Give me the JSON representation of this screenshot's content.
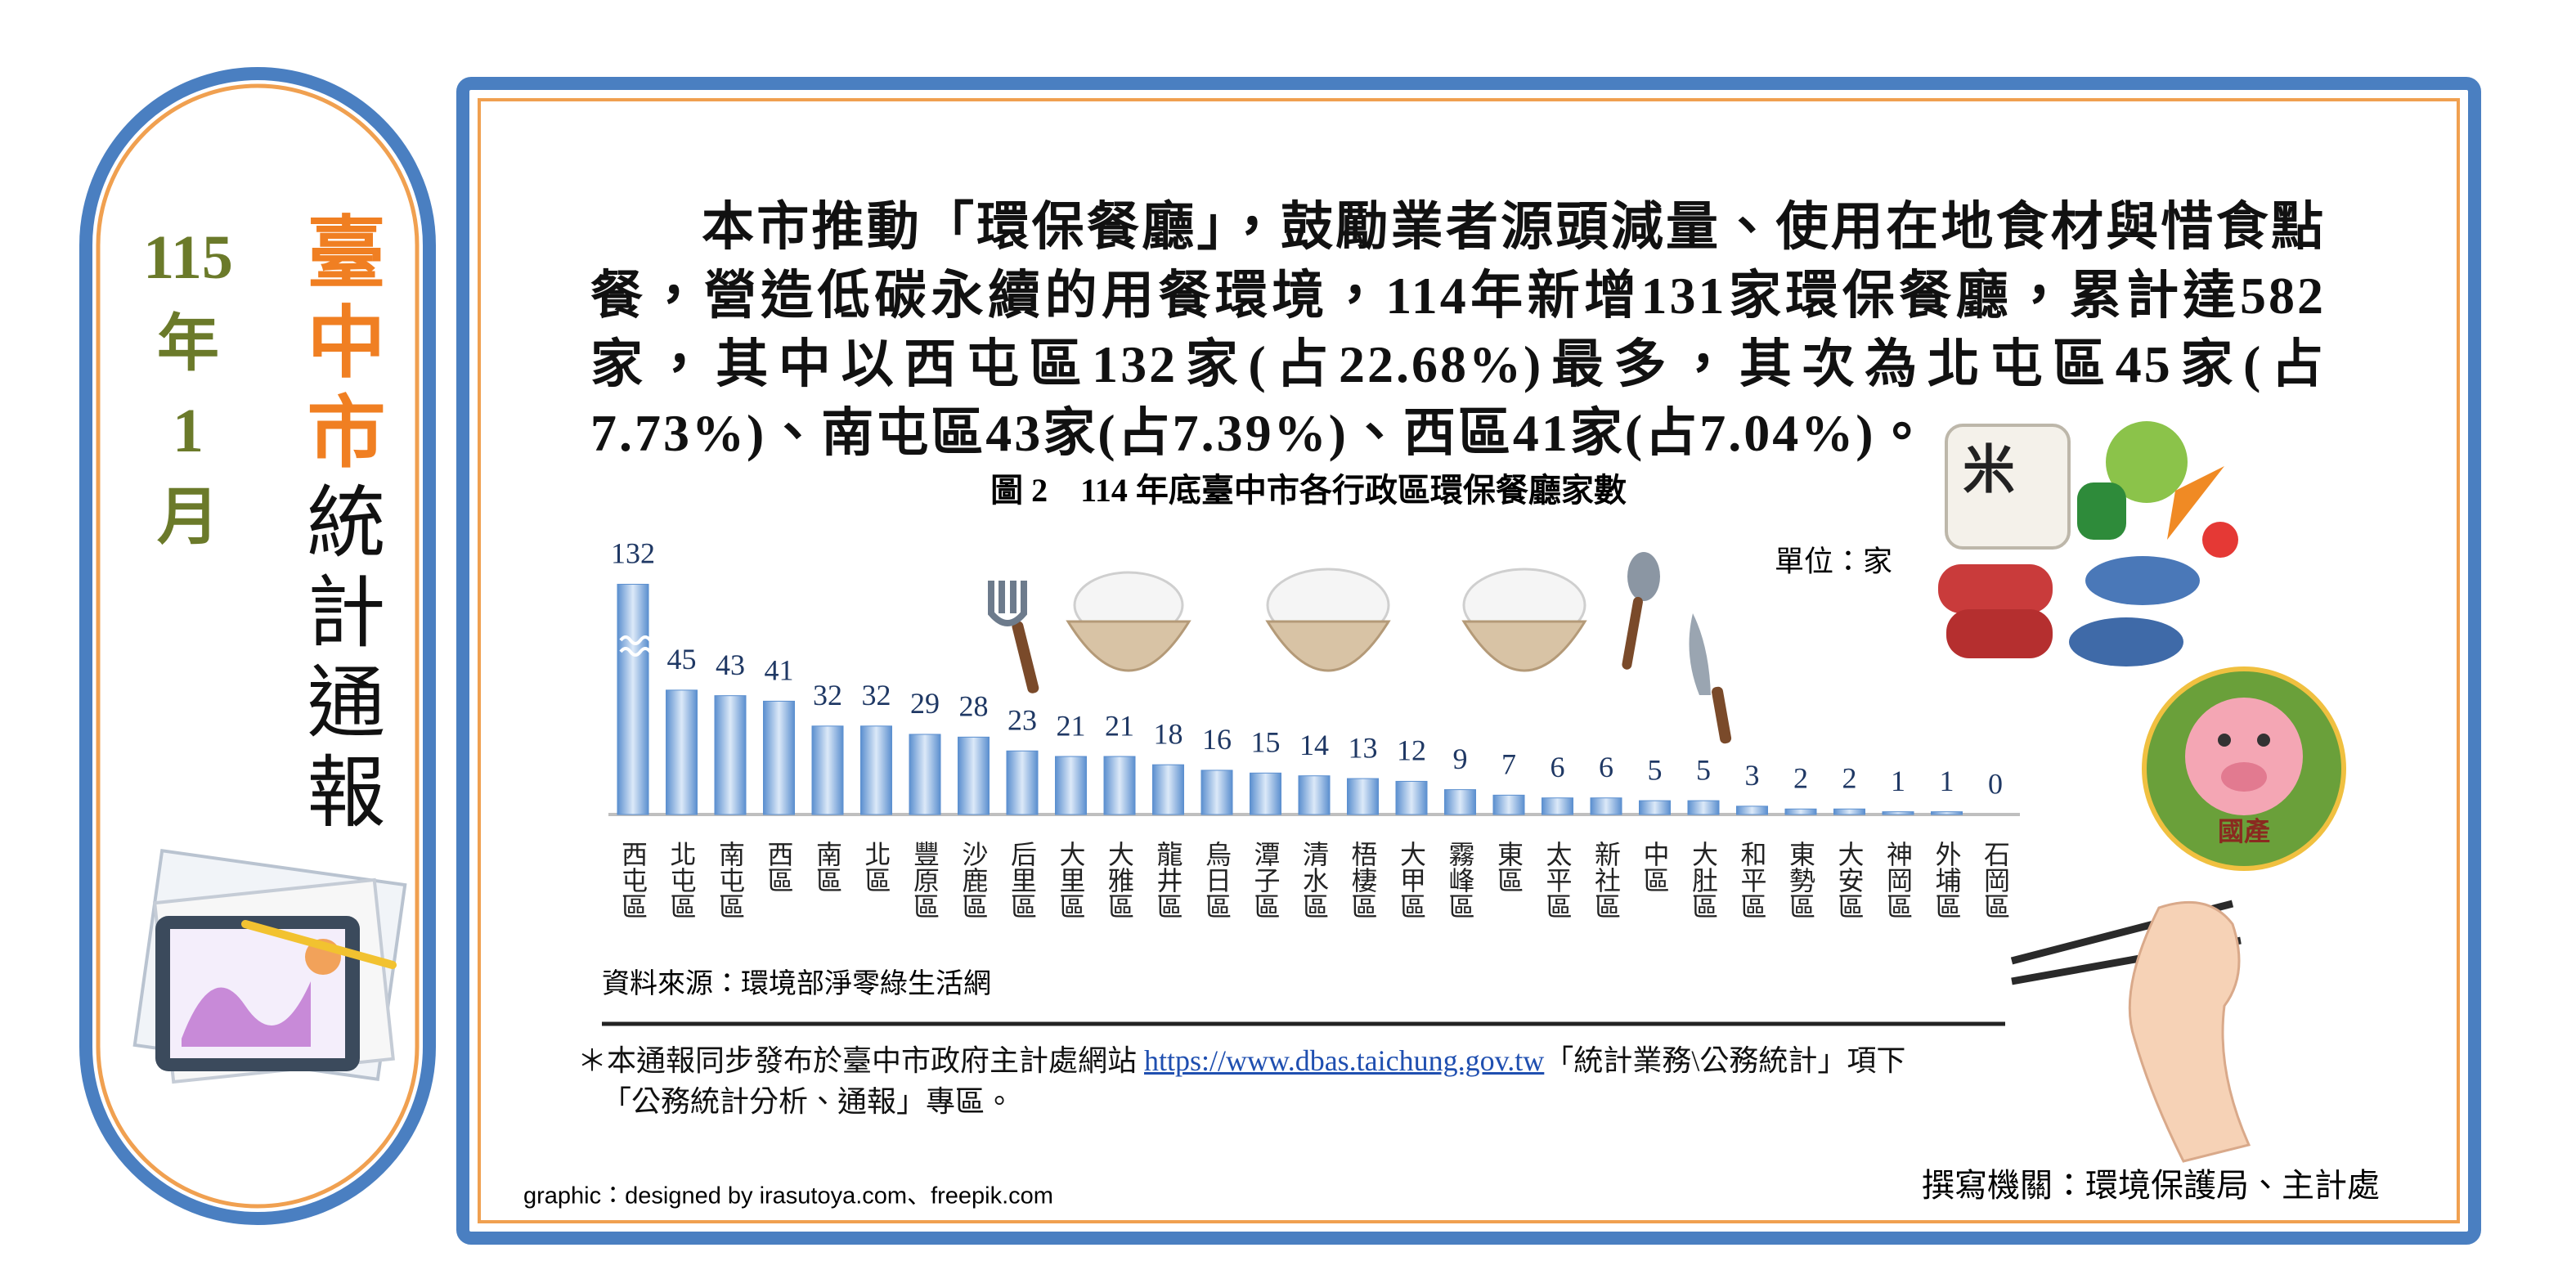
{
  "sidebar": {
    "year": "115",
    "year_unit": "年",
    "month": "1",
    "month_unit": "月",
    "city": "臺中市",
    "title": "統計通報"
  },
  "paragraph": "本市推動「環保餐廳」，鼓勵業者源頭減量、使用在地食材與惜食點餐，營造低碳永續的用餐環境，114年新增131家環保餐廳，累計達582家，其中以西屯區132家(占22.68%)最多，其次為北屯區45家(占7.73%)、南屯區43家(占7.39%)、西區41家(占7.04%)。",
  "chart_data": {
    "type": "bar",
    "title": "圖 2　114 年底臺中市各行政區環保餐廳家數",
    "unit": "單位：家",
    "categories": [
      "西屯區",
      "北屯區",
      "南屯區",
      "西區",
      "南區",
      "北區",
      "豐原區",
      "沙鹿區",
      "后里區",
      "大里區",
      "大雅區",
      "龍井區",
      "烏日區",
      "潭子區",
      "清水區",
      "梧棲區",
      "大甲區",
      "霧峰區",
      "東區",
      "太平區",
      "新社區",
      "中區",
      "大肚區",
      "和平區",
      "東勢區",
      "大安區",
      "神岡區",
      "外埔區",
      "石岡區"
    ],
    "values": [
      132,
      45,
      43,
      41,
      32,
      32,
      29,
      28,
      23,
      21,
      21,
      18,
      16,
      15,
      14,
      13,
      12,
      9,
      7,
      6,
      6,
      5,
      5,
      3,
      2,
      2,
      1,
      1,
      0
    ],
    "color": "#5b8fcf",
    "ylim": [
      0,
      132
    ],
    "axis_break": [
      50,
      120
    ],
    "source": "資料來源：環境部淨零綠生活網"
  },
  "footnote": {
    "prefix": "＊本通報同步發布於臺中市政府主計處網站 ",
    "link": "https://www.dbas.taichung.gov.tw",
    "suffix": "「統計業務\\公務統計」項下",
    "line2": "「公務統計分析、通報」專區。"
  },
  "illustrations": {
    "rice_bag": "米",
    "badge": "國產"
  },
  "credit": "graphic：designed by irasutoya.com、freepik.com",
  "author": "撰寫機關：環境保護局、主計處"
}
